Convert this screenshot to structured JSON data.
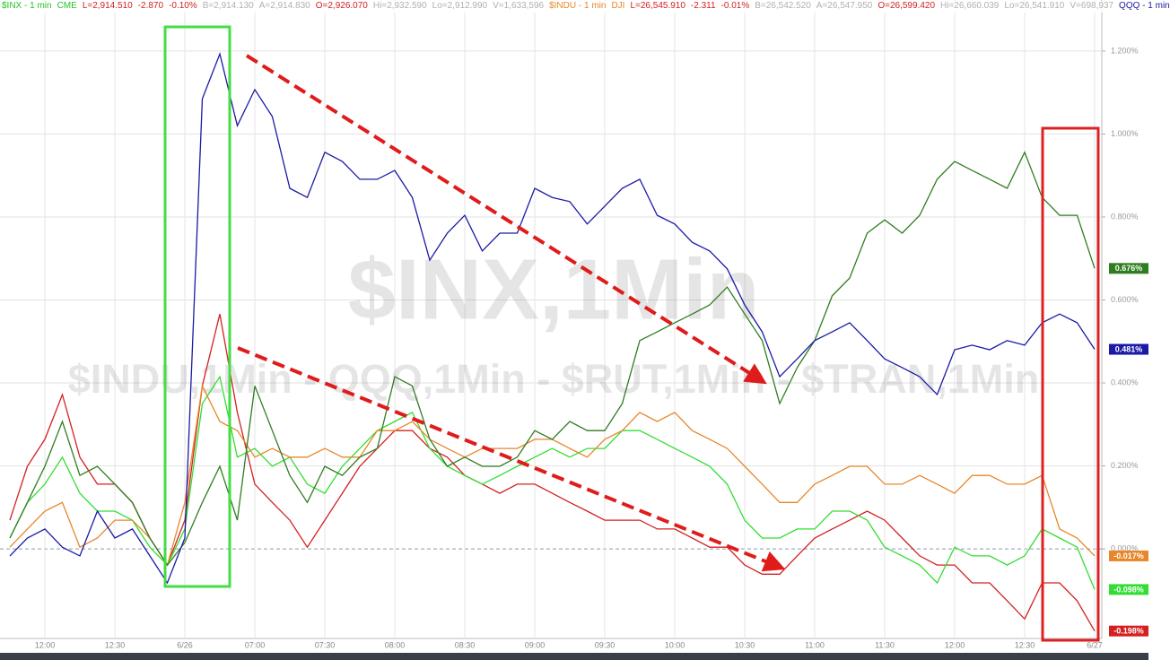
{
  "chart_data": {
    "type": "line",
    "header": [
      {
        "text": "$INX - 1 min",
        "color": "#27c227"
      },
      {
        "text": "CME",
        "color": "#27c227"
      },
      {
        "text": "L=2,914.510",
        "color": "#d42020"
      },
      {
        "text": "-2.870",
        "color": "#d42020"
      },
      {
        "text": "-0.10%",
        "color": "#d42020"
      },
      {
        "text": "B=2,914.130",
        "color": "#b0b0b0"
      },
      {
        "text": "A=2,914.830",
        "color": "#b0b0b0"
      },
      {
        "text": "O=2,926.070",
        "color": "#d42020"
      },
      {
        "text": "Hi=2,932.590",
        "color": "#b0b0b0"
      },
      {
        "text": "Lo=2,912.990",
        "color": "#b0b0b0"
      },
      {
        "text": "V=1,633,596",
        "color": "#b0b0b0"
      },
      {
        "text": "$INDU - 1 min",
        "color": "#e8862a"
      },
      {
        "text": "DJI",
        "color": "#e8862a"
      },
      {
        "text": "L=26,545.910",
        "color": "#d42020"
      },
      {
        "text": "-2.311",
        "color": "#d42020"
      },
      {
        "text": "-0.01%",
        "color": "#d42020"
      },
      {
        "text": "B=26,542.520",
        "color": "#b0b0b0"
      },
      {
        "text": "A=26,547.950",
        "color": "#b0b0b0"
      },
      {
        "text": "O=26,599.420",
        "color": "#d42020"
      },
      {
        "text": "Hi=26,660.039",
        "color": "#b0b0b0"
      },
      {
        "text": "Lo=26,541.910",
        "color": "#b0b0b0"
      },
      {
        "text": "V=698,937",
        "color": "#b0b0b0"
      },
      {
        "text": "QQQ - 1 min",
        "color": "#1a1aa6"
      }
    ],
    "watermark": "$INX,1Min",
    "watermark_sub": "$INDU,1Min - QQQ,1Min - $RUT,1Min - $TRAN,1Min",
    "categories": [
      null,
      null,
      "12:00",
      null,
      null,
      null,
      "12:30",
      null,
      null,
      null,
      "6/26",
      null,
      null,
      null,
      "07:00",
      null,
      null,
      null,
      "07:30",
      null,
      null,
      null,
      "08:00",
      null,
      null,
      null,
      "08:30",
      null,
      null,
      null,
      "09:00",
      null,
      null,
      null,
      "09:30",
      null,
      null,
      null,
      "10:00",
      null,
      null,
      null,
      "10:30",
      null,
      null,
      null,
      "11:00",
      null,
      null,
      null,
      "11:30",
      null,
      null,
      null,
      "12:00",
      null,
      null,
      null,
      "12:30",
      null,
      null,
      null,
      "6/27"
    ],
    "ylim": [
      -0.216,
      1.323
    ],
    "yticks": [
      {
        "value": 0,
        "label": "0.000%"
      },
      {
        "value": 0.2,
        "label": "0.200%"
      },
      {
        "value": 0.4,
        "label": "0.400%"
      },
      {
        "value": 0.6,
        "label": "0.600%"
      },
      {
        "value": 0.8,
        "label": "0.800%"
      },
      {
        "value": 1.0,
        "label": "1.000%"
      },
      {
        "value": 1.2,
        "label": "1.200%"
      }
    ],
    "grid": true,
    "series": [
      {
        "color": "#1a1aa6",
        "values": [
          -0.017,
          0.026,
          0.048,
          0.004,
          -0.017,
          0.091,
          0.026,
          0.048,
          -0.017,
          -0.082,
          0.026,
          1.085,
          1.193,
          1.02,
          1.107,
          1.042,
          0.869,
          0.847,
          0.956,
          0.934,
          0.891,
          0.891,
          0.912,
          0.847,
          0.696,
          0.761,
          0.804,
          0.718,
          0.761,
          0.761,
          0.869,
          0.847,
          0.837,
          0.783,
          0.826,
          0.869,
          0.891,
          0.804,
          0.783,
          0.739,
          0.718,
          0.675,
          0.588,
          0.523,
          0.415,
          0.458,
          0.502,
          0.523,
          0.545,
          0.502,
          0.458,
          0.437,
          0.415,
          0.372,
          0.48,
          0.491,
          0.48,
          0.502,
          0.491,
          0.545,
          0.566,
          0.545,
          0.481
        ],
        "value_labels": [
          null,
          null,
          null,
          null,
          null,
          null,
          null,
          null,
          null,
          null,
          null,
          null,
          null,
          null,
          null,
          null,
          null,
          null,
          null,
          null,
          null,
          null,
          null,
          null,
          null,
          null,
          null,
          null,
          null,
          null,
          null,
          null,
          null,
          null,
          null,
          null,
          null,
          null,
          null,
          null,
          null,
          null,
          null,
          null,
          null,
          null,
          null,
          null,
          null,
          null,
          null,
          null,
          null,
          null,
          null,
          null,
          null,
          null,
          null,
          null,
          null,
          null,
          "0.481%"
        ]
      },
      {
        "color": "#2e7d1f",
        "values": [
          0.026,
          0.112,
          0.199,
          0.307,
          0.177,
          0.199,
          0.156,
          0.112,
          0.026,
          -0.039,
          0.015,
          0.112,
          0.199,
          0.069,
          0.393,
          0.285,
          0.177,
          0.112,
          0.199,
          0.177,
          0.221,
          0.242,
          0.415,
          0.393,
          0.264,
          0.199,
          0.221,
          0.199,
          0.199,
          0.221,
          0.285,
          0.264,
          0.307,
          0.285,
          0.285,
          0.35,
          0.502,
          0.523,
          0.545,
          0.566,
          0.588,
          0.631,
          0.566,
          0.502,
          0.35,
          0.437,
          0.502,
          0.61,
          0.653,
          0.761,
          0.793,
          0.761,
          0.804,
          0.891,
          0.934,
          0.912,
          0.891,
          0.869,
          0.956,
          0.847,
          0.804,
          0.804,
          0.676
        ],
        "value_labels": [
          null,
          null,
          null,
          null,
          null,
          null,
          null,
          null,
          null,
          null,
          null,
          null,
          null,
          null,
          null,
          null,
          null,
          null,
          null,
          null,
          null,
          null,
          null,
          null,
          null,
          null,
          null,
          null,
          null,
          null,
          null,
          null,
          null,
          null,
          null,
          null,
          null,
          null,
          null,
          null,
          null,
          null,
          null,
          null,
          null,
          null,
          null,
          null,
          null,
          null,
          null,
          null,
          null,
          null,
          null,
          null,
          null,
          null,
          null,
          null,
          null,
          null,
          "0.676%"
        ]
      },
      {
        "color": "#e8862a",
        "values": [
          0.004,
          0.048,
          0.091,
          0.112,
          0.004,
          0.026,
          0.069,
          0.069,
          0.026,
          -0.039,
          0.112,
          0.393,
          0.307,
          0.285,
          0.221,
          0.242,
          0.221,
          0.221,
          0.242,
          0.221,
          0.221,
          0.285,
          0.285,
          0.307,
          0.264,
          0.242,
          0.221,
          0.242,
          0.242,
          0.242,
          0.264,
          0.264,
          0.242,
          0.221,
          0.264,
          0.285,
          0.329,
          0.307,
          0.329,
          0.285,
          0.264,
          0.242,
          0.199,
          0.156,
          0.112,
          0.112,
          0.156,
          0.177,
          0.199,
          0.199,
          0.156,
          0.156,
          0.177,
          0.156,
          0.134,
          0.177,
          0.177,
          0.156,
          0.156,
          0.177,
          0.048,
          0.026,
          -0.017
        ],
        "value_labels": [
          null,
          null,
          null,
          null,
          null,
          null,
          null,
          null,
          null,
          null,
          null,
          null,
          null,
          null,
          null,
          null,
          null,
          null,
          null,
          null,
          null,
          null,
          null,
          null,
          null,
          null,
          null,
          null,
          null,
          null,
          null,
          null,
          null,
          null,
          null,
          null,
          null,
          null,
          null,
          null,
          null,
          null,
          null,
          null,
          null,
          null,
          null,
          null,
          null,
          null,
          null,
          null,
          null,
          null,
          null,
          null,
          null,
          null,
          null,
          null,
          null,
          null,
          "-0.017%"
        ]
      },
      {
        "color": "#33dd33",
        "values": [
          0.026,
          0.112,
          0.156,
          0.221,
          0.134,
          0.091,
          0.091,
          0.069,
          0.004,
          -0.039,
          0.048,
          0.35,
          0.415,
          0.221,
          0.242,
          0.199,
          0.221,
          0.156,
          0.134,
          0.199,
          0.242,
          0.285,
          0.307,
          0.329,
          0.242,
          0.199,
          0.177,
          0.156,
          0.177,
          0.199,
          0.221,
          0.242,
          0.221,
          0.242,
          0.242,
          0.285,
          0.285,
          0.264,
          0.242,
          0.221,
          0.199,
          0.156,
          0.069,
          0.026,
          0.026,
          0.048,
          0.048,
          0.091,
          0.091,
          0.069,
          0.004,
          -0.017,
          -0.039,
          -0.082,
          0.004,
          -0.017,
          -0.017,
          -0.039,
          -0.017,
          0.048,
          0.026,
          0.004,
          -0.098
        ],
        "value_labels": [
          null,
          null,
          null,
          null,
          null,
          null,
          null,
          null,
          null,
          null,
          null,
          null,
          null,
          null,
          null,
          null,
          null,
          null,
          null,
          null,
          null,
          null,
          null,
          null,
          null,
          null,
          null,
          null,
          null,
          null,
          null,
          null,
          null,
          null,
          null,
          null,
          null,
          null,
          null,
          null,
          null,
          null,
          null,
          null,
          null,
          null,
          null,
          null,
          null,
          null,
          null,
          null,
          null,
          null,
          null,
          null,
          null,
          null,
          null,
          null,
          null,
          null,
          "-0.098%"
        ]
      },
      {
        "color": "#d42020",
        "values": [
          0.069,
          0.199,
          0.264,
          0.372,
          0.221,
          0.156,
          0.156,
          0.112,
          0.026,
          -0.039,
          0.069,
          0.393,
          0.566,
          0.329,
          0.156,
          0.112,
          0.069,
          0.004,
          0.069,
          0.134,
          0.199,
          0.242,
          0.285,
          0.285,
          0.242,
          0.221,
          0.177,
          0.156,
          0.134,
          0.156,
          0.156,
          0.134,
          0.112,
          0.091,
          0.069,
          0.069,
          0.069,
          0.048,
          0.048,
          0.026,
          0.004,
          0.004,
          -0.039,
          -0.061,
          -0.061,
          -0.017,
          0.026,
          0.048,
          0.069,
          0.091,
          0.069,
          0.026,
          -0.017,
          -0.039,
          -0.039,
          -0.082,
          -0.082,
          -0.125,
          -0.169,
          -0.082,
          -0.082,
          -0.125,
          -0.198
        ],
        "value_labels": [
          null,
          null,
          null,
          null,
          null,
          null,
          null,
          null,
          null,
          null,
          null,
          null,
          null,
          null,
          null,
          null,
          null,
          null,
          null,
          null,
          null,
          null,
          null,
          null,
          null,
          null,
          null,
          null,
          null,
          null,
          null,
          null,
          null,
          null,
          null,
          null,
          null,
          null,
          null,
          null,
          null,
          null,
          null,
          null,
          null,
          null,
          null,
          null,
          null,
          null,
          null,
          null,
          null,
          null,
          null,
          null,
          null,
          null,
          null,
          null,
          null,
          null,
          "-0.198%"
        ]
      }
    ]
  }
}
